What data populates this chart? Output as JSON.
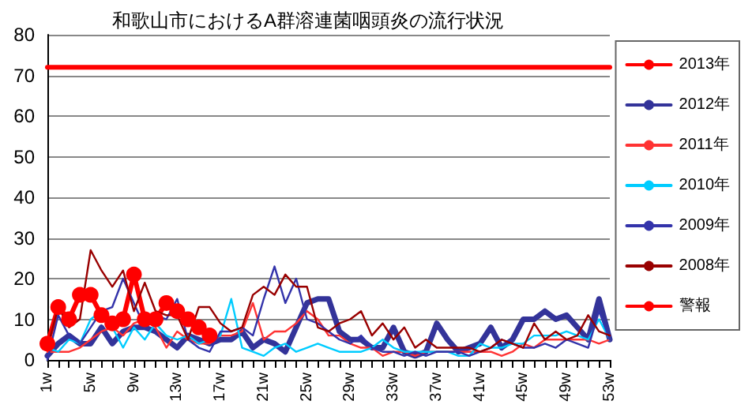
{
  "chart_data": {
    "type": "line",
    "title": "和歌山市におけるA群溶連菌咽頭炎の流行状況",
    "categories": [
      "1w",
      null,
      null,
      null,
      "5w",
      null,
      null,
      null,
      "9w",
      null,
      null,
      null,
      "13w",
      null,
      null,
      null,
      "17w",
      null,
      null,
      null,
      "21w",
      null,
      null,
      null,
      "25w",
      null,
      null,
      null,
      "29w",
      null,
      null,
      null,
      "33w",
      null,
      null,
      null,
      "37w",
      null,
      null,
      null,
      "41w",
      null,
      null,
      null,
      "45w",
      null,
      null,
      null,
      "49w",
      null,
      null,
      null,
      "53w"
    ],
    "ylim": [
      0,
      80
    ],
    "yticks": [
      0,
      10,
      20,
      30,
      40,
      50,
      60,
      70,
      80
    ],
    "grid": "y",
    "legend": "right",
    "series": [
      {
        "name": "2013年",
        "color": "#ff0000",
        "marker": "circle",
        "values": [
          4,
          13,
          10,
          16,
          16,
          11,
          9,
          10,
          21,
          10,
          10,
          14,
          12,
          10,
          8,
          6,
          null,
          null,
          null,
          null,
          null,
          null,
          null,
          null,
          null,
          null,
          null,
          null,
          null,
          null,
          null,
          null,
          null,
          null,
          null,
          null,
          null,
          null,
          null,
          null,
          null,
          null,
          null,
          null,
          null,
          null,
          null,
          null,
          null,
          null,
          null,
          null,
          null
        ]
      },
      {
        "name": "2012年",
        "color": "#333399",
        "values": [
          1,
          4,
          6,
          4,
          4,
          8,
          4,
          7,
          8,
          8,
          7,
          5,
          3,
          6,
          5,
          4,
          5,
          5,
          7,
          3,
          5,
          4,
          2,
          8,
          14,
          15,
          15,
          7,
          5,
          5,
          3,
          3,
          8,
          2,
          1,
          2,
          9,
          5,
          2,
          3,
          4,
          8,
          3,
          5,
          10,
          10,
          12,
          10,
          11,
          8,
          5,
          15,
          5
        ]
      },
      {
        "name": "2011年",
        "color": "#ff3333",
        "values": [
          2,
          2,
          2,
          3,
          5,
          7,
          8,
          6,
          9,
          10,
          8,
          3,
          7,
          5,
          4,
          4,
          6,
          6,
          7,
          14,
          5,
          7,
          7,
          9,
          12,
          10,
          6,
          6,
          4,
          3,
          3,
          1,
          2,
          2,
          1,
          2,
          2,
          2,
          2,
          2,
          2,
          2,
          1,
          2,
          4,
          3,
          5,
          5,
          5,
          5,
          5,
          4,
          5
        ]
      },
      {
        "name": "2010年",
        "color": "#00ccff",
        "values": [
          3,
          2,
          5,
          4,
          10,
          12,
          8,
          3,
          8,
          5,
          9,
          6,
          5,
          6,
          4,
          5,
          6,
          15,
          3,
          2,
          1,
          3,
          4,
          2,
          3,
          4,
          3,
          2,
          2,
          2,
          3,
          5,
          3,
          2,
          2,
          2,
          2,
          2,
          1,
          1,
          4,
          3,
          3,
          4,
          4,
          6,
          6,
          6,
          7,
          6,
          5,
          10,
          5
        ]
      },
      {
        "name": "2009年",
        "color": "#3333aa",
        "values": [
          0,
          11,
          6,
          4,
          8,
          12,
          13,
          20,
          14,
          8,
          11,
          10,
          15,
          5,
          3,
          2,
          7,
          7,
          8,
          6,
          15,
          23,
          14,
          20,
          10,
          9,
          7,
          5,
          4,
          6,
          3,
          2,
          2,
          1,
          2,
          1,
          2,
          2,
          2,
          1,
          2,
          3,
          5,
          4,
          3,
          3,
          4,
          3,
          5,
          4,
          3,
          12,
          5
        ]
      },
      {
        "name": "2008年",
        "color": "#990000",
        "values": [
          3,
          13,
          8,
          10,
          27,
          22,
          18,
          22,
          12,
          19,
          12,
          11,
          11,
          5,
          13,
          13,
          9,
          7,
          8,
          16,
          18,
          16,
          21,
          18,
          18,
          8,
          7,
          9,
          10,
          12,
          6,
          9,
          5,
          8,
          3,
          5,
          3,
          3,
          3,
          3,
          2,
          3,
          5,
          4,
          3,
          9,
          5,
          7,
          5,
          6,
          11,
          7,
          6
        ]
      },
      {
        "name": "警報",
        "color": "#ff0000",
        "values": [
          72,
          72,
          72,
          72,
          72,
          72,
          72,
          72,
          72,
          72,
          72,
          72,
          72,
          72,
          72,
          72,
          72,
          72,
          72,
          72,
          72,
          72,
          72,
          72,
          72,
          72,
          72,
          72,
          72,
          72,
          72,
          72,
          72,
          72,
          72,
          72,
          72,
          72,
          72,
          72,
          72,
          72,
          72,
          72,
          72,
          72,
          72,
          72,
          72,
          72,
          72,
          72,
          72
        ]
      }
    ]
  }
}
